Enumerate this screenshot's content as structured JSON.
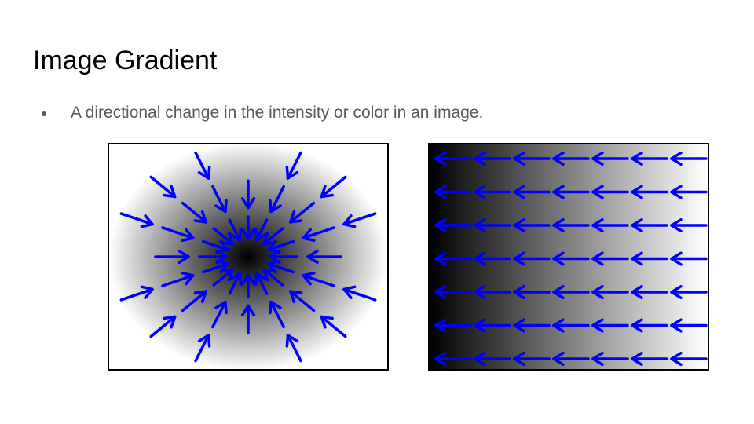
{
  "slide": {
    "title": "Image Gradient",
    "bullet": "A directional change in the intensity or color in an image."
  },
  "diagrams": {
    "radial": {
      "pattern": "radial-gradient",
      "arrow_direction": "inward-toward-center"
    },
    "linear": {
      "pattern": "horizontal-gradient",
      "arrow_direction": "left"
    }
  },
  "colors": {
    "arrow": "#0000ff",
    "title_text": "#000000",
    "bullet_text": "#595959",
    "frame": "#000000"
  }
}
